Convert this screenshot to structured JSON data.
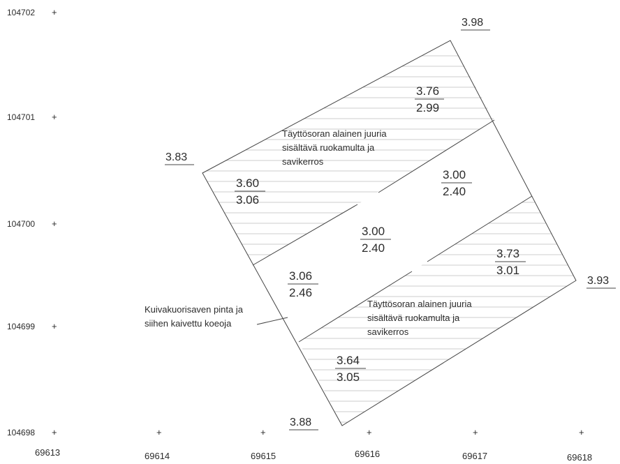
{
  "grid": {
    "y_labels": [
      "104702",
      "104701",
      "104700",
      "104699",
      "104698"
    ],
    "x_labels": [
      "69613",
      "69614",
      "69615",
      "69616",
      "69617",
      "69618"
    ],
    "marker": "+"
  },
  "corner_levels": {
    "top": "3.98",
    "left": "3.83",
    "right": "3.93",
    "bottom": "3.88"
  },
  "section_levels": [
    {
      "top": "3.76",
      "bottom": "2.99"
    },
    {
      "top": "3.60",
      "bottom": "3.06"
    },
    {
      "top": "3.00",
      "bottom": "2.40"
    },
    {
      "top": "3.00",
      "bottom": "2.40"
    },
    {
      "top": "3.73",
      "bottom": "3.01"
    },
    {
      "top": "3.06",
      "bottom": "2.46"
    },
    {
      "top": "3.64",
      "bottom": "3.05"
    }
  ],
  "notes": {
    "upper_fill": [
      "Täyttösoran alainen juuria",
      "sisältävä ruokamulta ja",
      "savikerros"
    ],
    "lower_fill": [
      "Täyttösoran alainen juuria",
      "sisältävä ruokamulta ja",
      "savikerros"
    ],
    "dry_crust": [
      "Kuivakuorisaven pinta ja",
      "siihen kaivettu koeoja"
    ]
  }
}
